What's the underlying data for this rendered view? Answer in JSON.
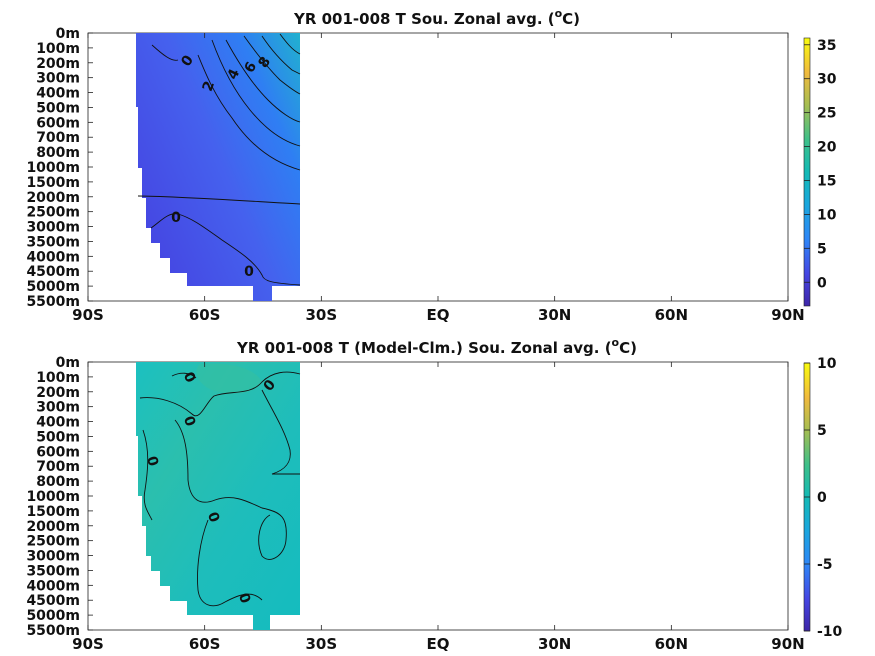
{
  "chart_data": [
    {
      "type": "heatmap",
      "title": "YR 001-008 T Sou. Zonal avg. (°C)",
      "title_main": "YR 001-008 T Sou. Zonal avg. (",
      "title_sup": "o",
      "title_end": "C)",
      "x_ticks": [
        "90S",
        "60S",
        "30S",
        "EQ",
        "30N",
        "60N",
        "90N"
      ],
      "y_ticks": [
        "0m",
        "100m",
        "200m",
        "300m",
        "400m",
        "500m",
        "600m",
        "700m",
        "800m",
        "1000m",
        "1500m",
        "2000m",
        "2500m",
        "3000m",
        "3500m",
        "4000m",
        "4500m",
        "5000m",
        "5500m"
      ],
      "colorbar_ticks": [
        "35",
        "30",
        "25",
        "20",
        "15",
        "10",
        "5",
        "0"
      ],
      "colorbar_range": [
        -3.5,
        36
      ],
      "data_lat_range": [
        "79S",
        "36S"
      ],
      "contour_labels": [
        "0",
        "2",
        "4",
        "6",
        "8",
        "0",
        "0"
      ],
      "colormap": "parula",
      "field_color": "#4a50e6"
    },
    {
      "type": "heatmap",
      "title": "YR 001-008 T (Model-Clm.) Sou. Zonal avg. (°C)",
      "title_main": "YR 001-008 T (Model-Clm.) Sou. Zonal avg. (",
      "title_sup": "o",
      "title_end": "C)",
      "x_ticks": [
        "90S",
        "60S",
        "30S",
        "EQ",
        "30N",
        "60N",
        "90N"
      ],
      "y_ticks": [
        "0m",
        "100m",
        "200m",
        "300m",
        "400m",
        "500m",
        "600m",
        "700m",
        "800m",
        "1000m",
        "1500m",
        "2000m",
        "2500m",
        "3000m",
        "3500m",
        "4000m",
        "4500m",
        "5000m",
        "5500m"
      ],
      "colorbar_ticks": [
        "10",
        "5",
        "0",
        "-5",
        "-10"
      ],
      "colorbar_range": [
        -10,
        10
      ],
      "data_lat_range": [
        "79S",
        "36S"
      ],
      "contour_labels": [
        "0",
        "0",
        "0",
        "0",
        "0",
        "0"
      ],
      "colormap": "parula",
      "field_color": "#20bdb9"
    }
  ]
}
